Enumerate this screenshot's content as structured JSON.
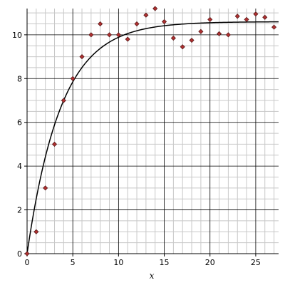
{
  "chart_data": {
    "type": "scatter",
    "title": "",
    "xlabel": "x",
    "ylabel": "",
    "xlim": [
      0,
      27.5
    ],
    "ylim": [
      0,
      11.2
    ],
    "x_ticks": [
      0,
      5,
      10,
      15,
      20,
      25
    ],
    "y_ticks": [
      0,
      2,
      4,
      6,
      8,
      10
    ],
    "grid": true,
    "minor_grid": true,
    "legend": "none",
    "colors": {
      "points": "#b03030",
      "points_outline": "#5a1a1a",
      "curve": "#000000",
      "major_grid": "#000000",
      "minor_grid": "#c8c8c8"
    },
    "series": [
      {
        "type": "scatter",
        "marker": "diamond",
        "x": [
          0,
          1,
          2,
          3,
          4,
          5,
          6,
          7,
          8,
          9,
          10,
          11,
          12,
          13,
          14,
          15,
          16,
          17,
          18,
          19,
          20,
          21,
          22,
          23,
          24,
          25,
          26,
          27
        ],
        "y": [
          0,
          1.0,
          3.0,
          5.0,
          7.0,
          8.0,
          9.0,
          10.0,
          10.5,
          10.0,
          10.0,
          9.8,
          10.5,
          10.9,
          11.2,
          10.6,
          9.85,
          9.45,
          9.75,
          10.15,
          10.7,
          10.05,
          10.0,
          10.85,
          10.7,
          10.95,
          10.8,
          10.35
        ]
      },
      {
        "type": "line",
        "model": "y = 10.6 * (1 - exp(-0.27 * x))",
        "x_range": [
          0,
          27.5
        ]
      }
    ]
  }
}
